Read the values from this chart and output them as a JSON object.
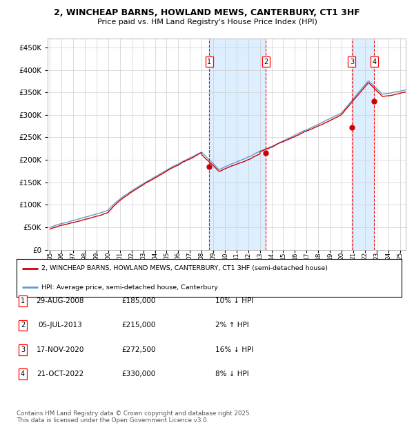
{
  "title_line1": "2, WINCHEAP BARNS, HOWLAND MEWS, CANTERBURY, CT1 3HF",
  "title_line2": "Price paid vs. HM Land Registry's House Price Index (HPI)",
  "ylabel_ticks": [
    "£0",
    "£50K",
    "£100K",
    "£150K",
    "£200K",
    "£250K",
    "£300K",
    "£350K",
    "£400K",
    "£450K"
  ],
  "ytick_values": [
    0,
    50000,
    100000,
    150000,
    200000,
    250000,
    300000,
    350000,
    400000,
    450000
  ],
  "ylim": [
    0,
    470000
  ],
  "xlim_start": 1994.8,
  "xlim_end": 2025.5,
  "xtick_years": [
    1995,
    1996,
    1997,
    1998,
    1999,
    2000,
    2001,
    2002,
    2003,
    2004,
    2005,
    2006,
    2007,
    2008,
    2009,
    2010,
    2011,
    2012,
    2013,
    2014,
    2015,
    2016,
    2017,
    2018,
    2019,
    2020,
    2021,
    2022,
    2023,
    2024,
    2025
  ],
  "sale_events": [
    {
      "num": 1,
      "date": "29-AUG-2008",
      "price": 185000,
      "hpi_diff": "10% ↓ HPI",
      "year_x": 2008.66
    },
    {
      "num": 2,
      "date": "05-JUL-2013",
      "price": 215000,
      "hpi_diff": "2% ↑ HPI",
      "year_x": 2013.5
    },
    {
      "num": 3,
      "date": "17-NOV-2020",
      "price": 272500,
      "hpi_diff": "16% ↓ HPI",
      "year_x": 2020.88
    },
    {
      "num": 4,
      "date": "21-OCT-2022",
      "price": 330000,
      "hpi_diff": "8% ↓ HPI",
      "year_x": 2022.8
    }
  ],
  "shaded_regions": [
    {
      "x_start": 2008.66,
      "x_end": 2013.5
    },
    {
      "x_start": 2020.88,
      "x_end": 2022.8
    }
  ],
  "red_line_color": "#cc0000",
  "blue_line_color": "#6699cc",
  "shade_color": "#ddeeff",
  "legend_label_red": "2, WINCHEAP BARNS, HOWLAND MEWS, CANTERBURY, CT1 3HF (semi-detached house)",
  "legend_label_blue": "HPI: Average price, semi-detached house, Canterbury",
  "footer_text": "Contains HM Land Registry data © Crown copyright and database right 2025.\nThis data is licensed under the Open Government Licence v3.0.",
  "background_color": "#ffffff",
  "grid_color": "#cccccc"
}
